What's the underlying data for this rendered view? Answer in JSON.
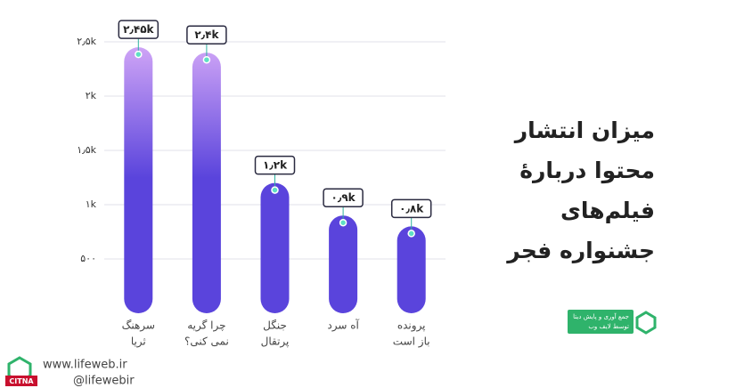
{
  "chart_data": {
    "type": "bar",
    "title": [
      "میزان انتشار",
      "محتوا دربارهٔ",
      "فیلم‌های",
      "جشنواره فجر"
    ],
    "categories": [
      [
        "سرهنگ",
        "ثریا"
      ],
      [
        "چرا گریه",
        "نمی کنی؟"
      ],
      [
        "جنگل",
        "پرتقال"
      ],
      [
        "آه سرد"
      ],
      [
        "پرونده",
        "باز است"
      ]
    ],
    "values": [
      2450,
      2400,
      1200,
      900,
      800
    ],
    "value_labels": [
      "۲٫۴۵k",
      "۲٫۴k",
      "۱٫۲k",
      "۰٫۹k",
      "۰٫۸k"
    ],
    "colors": [
      "#d3a8f7",
      "#5a44dc"
    ],
    "ylim": [
      0,
      2500
    ],
    "yticks": [
      {
        "value": 500,
        "label": "۵۰۰"
      },
      {
        "value": 1000,
        "label": "۱k"
      },
      {
        "value": 1500,
        "label": "۱٫۵k"
      },
      {
        "value": 2000,
        "label": "۲k"
      },
      {
        "value": 2500,
        "label": "۲٫۵k"
      }
    ],
    "grid": true
  },
  "footer": {
    "website": "www.lifeweb.ir",
    "handle": "@lifewebir",
    "badge": [
      "جمع آوری و پایش دیتا",
      "توسط لایف وب"
    ],
    "citna": "CITNA"
  }
}
